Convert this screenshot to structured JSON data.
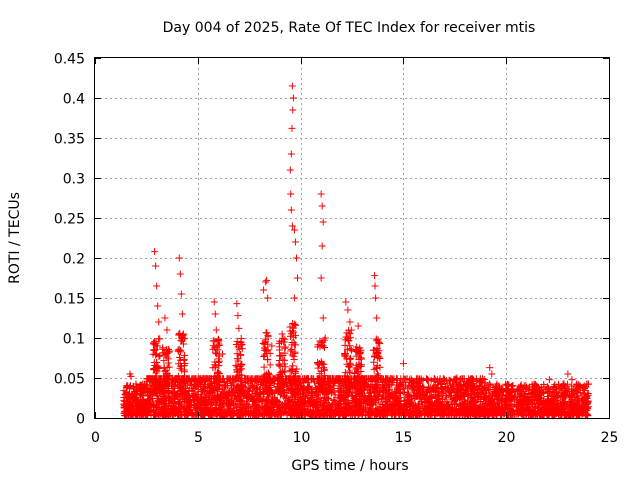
{
  "chart_data": {
    "type": "scatter",
    "title": "Day 004 of 2025, Rate Of TEC Index for receiver mtis",
    "xlabel": "GPS time / hours",
    "ylabel": "ROTI / TECUs",
    "xlim": [
      0,
      25
    ],
    "ylim": [
      0,
      0.45
    ],
    "xticks": [
      0,
      5,
      10,
      15,
      20,
      25
    ],
    "xtick_labels": [
      "0",
      "5",
      "10",
      "15",
      "20",
      "25"
    ],
    "yticks": [
      0,
      0.05,
      0.1,
      0.15,
      0.2,
      0.25,
      0.3,
      0.35,
      0.4,
      0.45
    ],
    "ytick_labels": [
      "0",
      "0.05",
      "0.1",
      "0.15",
      "0.2",
      "0.25",
      "0.3",
      "0.35",
      "0.4",
      "0.45"
    ],
    "grid": true,
    "marker": "+",
    "color": "#ff0000",
    "x_range_of_data": [
      1.4,
      24.0
    ],
    "series": [
      {
        "name": "ROTI",
        "points": [
          [
            1.7,
            0.055
          ],
          [
            1.75,
            0.052
          ],
          [
            2.9,
            0.208
          ],
          [
            2.95,
            0.19
          ],
          [
            3.0,
            0.165
          ],
          [
            3.05,
            0.14
          ],
          [
            3.1,
            0.12
          ],
          [
            3.4,
            0.125
          ],
          [
            3.5,
            0.11
          ],
          [
            4.1,
            0.2
          ],
          [
            4.15,
            0.18
          ],
          [
            4.2,
            0.155
          ],
          [
            4.25,
            0.13
          ],
          [
            4.3,
            0.105
          ],
          [
            5.8,
            0.145
          ],
          [
            5.85,
            0.13
          ],
          [
            5.9,
            0.11
          ],
          [
            6.0,
            0.095
          ],
          [
            6.2,
            0.08
          ],
          [
            6.9,
            0.143
          ],
          [
            6.95,
            0.128
          ],
          [
            7.0,
            0.112
          ],
          [
            7.1,
            0.095
          ],
          [
            8.2,
            0.16
          ],
          [
            8.3,
            0.17
          ],
          [
            8.35,
            0.172
          ],
          [
            8.4,
            0.15
          ],
          [
            8.6,
            0.09
          ],
          [
            9.1,
            0.105
          ],
          [
            9.2,
            0.095
          ],
          [
            9.6,
            0.415
          ],
          [
            9.65,
            0.4
          ],
          [
            9.62,
            0.385
          ],
          [
            9.58,
            0.362
          ],
          [
            9.55,
            0.33
          ],
          [
            9.5,
            0.31
          ],
          [
            9.52,
            0.28
          ],
          [
            9.55,
            0.26
          ],
          [
            9.6,
            0.24
          ],
          [
            9.7,
            0.235
          ],
          [
            9.75,
            0.22
          ],
          [
            9.8,
            0.2
          ],
          [
            9.85,
            0.175
          ],
          [
            9.7,
            0.15
          ],
          [
            11.0,
            0.28
          ],
          [
            11.05,
            0.265
          ],
          [
            11.1,
            0.245
          ],
          [
            11.05,
            0.215
          ],
          [
            11.0,
            0.175
          ],
          [
            11.1,
            0.125
          ],
          [
            11.2,
            0.1
          ],
          [
            12.2,
            0.145
          ],
          [
            12.3,
            0.135
          ],
          [
            12.4,
            0.12
          ],
          [
            12.8,
            0.115
          ],
          [
            13.6,
            0.178
          ],
          [
            13.62,
            0.165
          ],
          [
            13.65,
            0.15
          ],
          [
            13.7,
            0.125
          ],
          [
            13.8,
            0.095
          ],
          [
            15.0,
            0.068
          ],
          [
            16.8,
            0.042
          ],
          [
            17.6,
            0.05
          ],
          [
            19.2,
            0.063
          ],
          [
            19.3,
            0.055
          ],
          [
            20.3,
            0.04
          ],
          [
            22.1,
            0.048
          ],
          [
            23.0,
            0.055
          ],
          [
            23.2,
            0.048
          ],
          [
            23.6,
            0.04
          ]
        ]
      }
    ]
  }
}
